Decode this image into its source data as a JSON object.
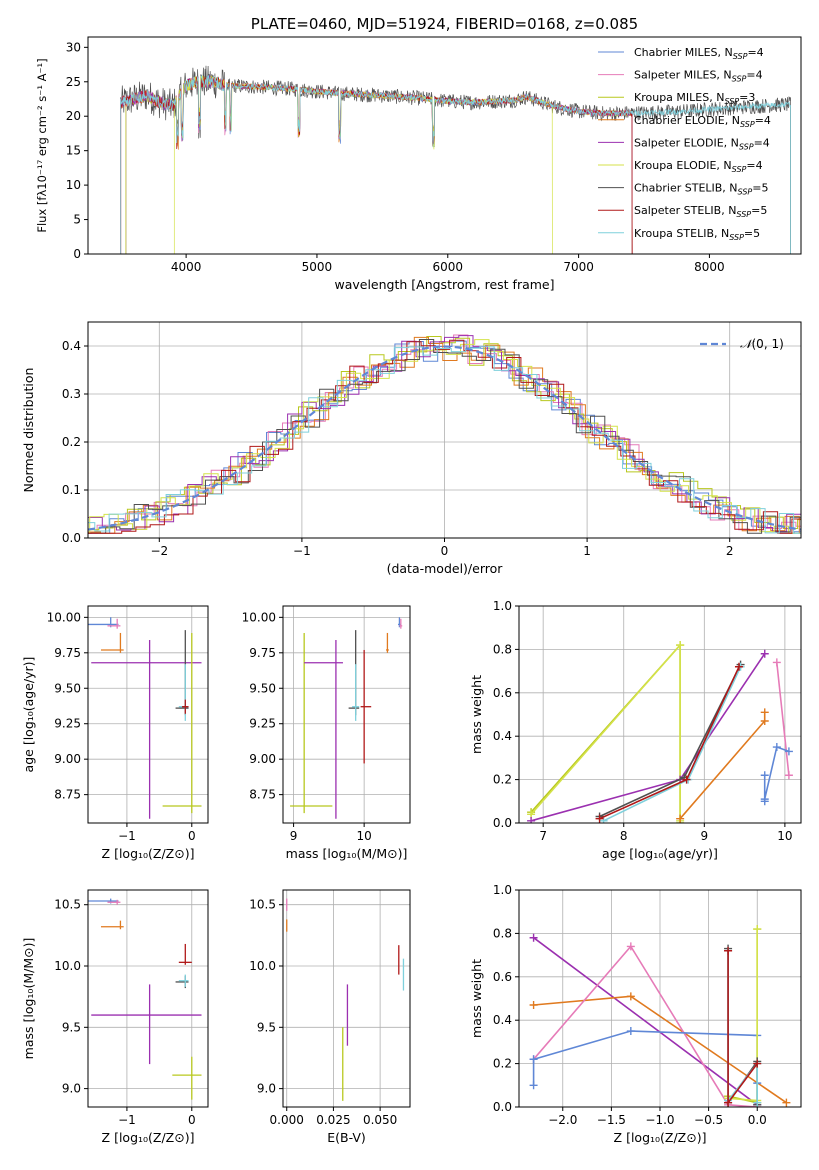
{
  "colors": {
    "Chabrier MILES": "#5f87d6",
    "Salpeter MILES": "#e67bb8",
    "Kroupa MILES": "#b8c81e",
    "Chabrier ELODIE": "#e07a1f",
    "Salpeter ELODIE": "#9b30b0",
    "Kroupa ELODIE": "#d4e24a",
    "Chabrier STELIB": "#505050",
    "Salpeter STELIB": "#b01818",
    "Kroupa STELIB": "#7fd0dc",
    "normal_fit": "#5f87d6"
  },
  "chart_data": [
    {
      "id": "spectrum",
      "type": "line",
      "title": "PLATE=0460, MJD=51924, FIBERID=0168, z=0.085",
      "xlabel": "wavelength [Angstrom, rest frame]",
      "ylabel": "Flux [fλ10⁻¹⁷ erg cm⁻² s⁻¹ A⁻¹]",
      "xlim": [
        3250,
        8700
      ],
      "ylim": [
        0,
        31.5
      ],
      "xticks": [
        "4000",
        "5000",
        "6000",
        "7000",
        "8000"
      ],
      "yticks": [
        "0",
        "5",
        "10",
        "15",
        "20",
        "25",
        "30"
      ],
      "grid": false,
      "legend_position": "top-right",
      "series": [
        {
          "name": "Chabrier MILES",
          "nssp_label": "Chabrier MILES, N",
          "nssp": "=4",
          "range": [
            3540,
            7410
          ]
        },
        {
          "name": "Salpeter MILES",
          "nssp_label": "Salpeter MILES, N",
          "nssp": "=4",
          "range": [
            3540,
            7410
          ]
        },
        {
          "name": "Kroupa MILES",
          "nssp_label": "Kroupa MILES, N",
          "nssp": "=3",
          "range": [
            3540,
            7410
          ]
        },
        {
          "name": "Chabrier ELODIE",
          "nssp_label": "Chabrier ELODIE, N",
          "nssp": "=4",
          "range": [
            3500,
            7410
          ]
        },
        {
          "name": "Salpeter ELODIE",
          "nssp_label": "Salpeter ELODIE, N",
          "nssp": "=4",
          "range": [
            3500,
            7410
          ]
        },
        {
          "name": "Kroupa ELODIE",
          "nssp_label": "Kroupa ELODIE, N",
          "nssp": "=4",
          "range": [
            3910,
            6800
          ]
        },
        {
          "name": "Chabrier STELIB",
          "nssp_label": "Chabrier STELIB, N",
          "nssp": "=5",
          "range": [
            3500,
            8620
          ]
        },
        {
          "name": "Salpeter STELIB",
          "nssp_label": "Salpeter STELIB, N",
          "nssp": "=5",
          "range": [
            3500,
            7410
          ]
        },
        {
          "name": "Kroupa STELIB",
          "nssp_label": "Kroupa STELIB, N",
          "nssp": "=5",
          "range": [
            3500,
            8620
          ]
        }
      ],
      "continuum": {
        "x": [
          3500,
          3600,
          3700,
          3800,
          3900,
          3950,
          4000,
          4100,
          4200,
          4300,
          4500,
          4800,
          5000,
          5200,
          5500,
          5800,
          6000,
          6200,
          6500,
          6600,
          6800,
          7000,
          7200,
          7500,
          7800,
          8000,
          8300,
          8600
        ],
        "y": [
          22,
          22.5,
          23,
          22,
          21.5,
          23,
          24.5,
          25,
          25,
          24.5,
          24.3,
          24,
          23.6,
          23.3,
          23,
          22.6,
          22.2,
          22,
          22.3,
          22.8,
          21.5,
          20.7,
          20.4,
          20.5,
          20.7,
          21,
          21.4,
          21.7
        ]
      }
    },
    {
      "id": "residuals",
      "type": "line",
      "xlabel": "(data-model)/error",
      "ylabel": "Normed distribution",
      "xlim": [
        -2.5,
        2.5
      ],
      "ylim": [
        0,
        0.45
      ],
      "xticks": [
        "−2",
        "−1",
        "0",
        "1",
        "2"
      ],
      "yticks": [
        "0.0",
        "0.1",
        "0.2",
        "0.3",
        "0.4"
      ],
      "grid": true,
      "legend_position": "top-right",
      "legend_label": "(0, 1)",
      "legend_glyph": "𝒩",
      "fit": {
        "name": "N(0,1)",
        "mean": 0,
        "sigma": 1
      }
    },
    {
      "id": "age-vs-Z",
      "type": "scatter",
      "xlabel": "Z [log₁₀(Z/Z⊙)]",
      "ylabel": "age  [log₁₀(age/yr)]",
      "xlim": [
        -1.6,
        0.25
      ],
      "ylim": [
        8.55,
        10.08
      ],
      "xticks": [
        "−1",
        "0"
      ],
      "yticks": [
        "8.75",
        "9.00",
        "9.25",
        "9.50",
        "9.75",
        "10.00"
      ],
      "grid": true,
      "points": [
        {
          "series": "Chabrier MILES",
          "x": -1.25,
          "y": 9.95,
          "xerr": [
            0.35,
            0.12
          ],
          "yerr": [
            0.02,
            0.05
          ]
        },
        {
          "series": "Salpeter MILES",
          "x": -1.15,
          "y": 9.94,
          "xerr": [
            0.15,
            0.05
          ],
          "yerr": [
            0.02,
            0.05
          ]
        },
        {
          "series": "Chabrier ELODIE",
          "x": -1.1,
          "y": 9.77,
          "xerr": [
            0.3,
            0.05
          ],
          "yerr": [
            0.02,
            0.12
          ]
        },
        {
          "series": "Salpeter ELODIE",
          "x": -0.65,
          "y": 9.68,
          "xerr": [
            0.9,
            0.8
          ],
          "yerr": [
            1.1,
            0.16
          ]
        },
        {
          "series": "Chabrier STELIB",
          "x": -0.1,
          "y": 9.36,
          "xerr": [
            0.15,
            0.05
          ],
          "yerr": [
            0.05,
            0.55
          ]
        },
        {
          "series": "Kroupa STELIB",
          "x": -0.1,
          "y": 9.37,
          "xerr": [
            0.1,
            0.05
          ],
          "yerr": [
            0.1,
            0.3
          ]
        },
        {
          "series": "Kroupa MILES",
          "x": 0.0,
          "y": 8.67,
          "xerr": [
            0.45,
            0.15
          ],
          "yerr": [
            0.05,
            1.22
          ]
        },
        {
          "series": "Salpeter STELIB",
          "x": -0.1,
          "y": 9.37,
          "xerr": [
            0.05,
            0.05
          ],
          "yerr": [
            0.05,
            0.05
          ]
        }
      ]
    },
    {
      "id": "age-vs-mass",
      "type": "scatter",
      "xlabel": "mass [log₁₀(M/M⊙)]",
      "ylabel": "",
      "xlim": [
        8.85,
        10.65
      ],
      "ylim": [
        8.55,
        10.08
      ],
      "xticks": [
        "9",
        "10"
      ],
      "yticks": [
        "8.75",
        "9.00",
        "9.25",
        "9.50",
        "9.75",
        "10.00"
      ],
      "grid": true,
      "points": [
        {
          "series": "Kroupa MILES",
          "x": 9.15,
          "y": 8.67,
          "xerr": [
            0.2,
            0.4
          ],
          "yerr": [
            0.05,
            1.22
          ]
        },
        {
          "series": "Salpeter ELODIE",
          "x": 9.6,
          "y": 9.68,
          "xerr": [
            0.45,
            0.1
          ],
          "yerr": [
            1.1,
            0.16
          ]
        },
        {
          "series": "Chabrier STELIB",
          "x": 9.88,
          "y": 9.36,
          "xerr": [
            0.1,
            0.05
          ],
          "yerr": [
            0.05,
            0.55
          ]
        },
        {
          "series": "Kroupa STELIB",
          "x": 9.88,
          "y": 9.37,
          "xerr": [
            0.05,
            0.05
          ],
          "yerr": [
            0.1,
            0.3
          ]
        },
        {
          "series": "Salpeter STELIB",
          "x": 10.0,
          "y": 9.37,
          "xerr": [
            0.05,
            0.1
          ],
          "yerr": [
            0.4,
            0.4
          ]
        },
        {
          "series": "Chabrier ELODIE",
          "x": 10.33,
          "y": 9.77,
          "xerr": [
            0.02,
            0.02
          ],
          "yerr": [
            0.02,
            0.12
          ]
        },
        {
          "series": "Chabrier MILES",
          "x": 10.5,
          "y": 9.95,
          "xerr": [
            0.02,
            0.02
          ],
          "yerr": [
            0.02,
            0.05
          ]
        },
        {
          "series": "Salpeter MILES",
          "x": 10.52,
          "y": 9.94,
          "xerr": [
            0.02,
            0.02
          ],
          "yerr": [
            0.02,
            0.05
          ]
        }
      ]
    },
    {
      "id": "weight-vs-age",
      "type": "line",
      "xlabel": "age  [log₁₀(age/yr)]",
      "ylabel": "mass weight",
      "xlim": [
        6.7,
        10.2
      ],
      "ylim": [
        0,
        1.0
      ],
      "xticks": [
        "7",
        "8",
        "9",
        "10"
      ],
      "yticks": [
        "0.0",
        "0.2",
        "0.4",
        "0.6",
        "0.8",
        "1.0"
      ],
      "grid": true,
      "series": [
        {
          "name": "Kroupa MILES",
          "x": [
            6.85,
            8.7,
            8.7
          ],
          "y": [
            0.05,
            0.82,
            0.0
          ]
        },
        {
          "name": "Kroupa ELODIE",
          "x": [
            6.85,
            8.7,
            8.7
          ],
          "y": [
            0.04,
            0.82,
            0.01
          ]
        },
        {
          "name": "Salpeter ELODIE",
          "x": [
            6.85,
            8.7,
            9.75
          ],
          "y": [
            0.01,
            0.2,
            0.78
          ]
        },
        {
          "name": "Chabrier ELODIE",
          "x": [
            8.7,
            9.75,
            9.75
          ],
          "y": [
            0.02,
            0.47,
            0.51
          ]
        },
        {
          "name": "Chabrier STELIB",
          "x": [
            7.7,
            8.75,
            9.45
          ],
          "y": [
            0.03,
            0.21,
            0.73
          ]
        },
        {
          "name": "Kroupa STELIB",
          "x": [
            7.75,
            8.8,
            9.45
          ],
          "y": [
            0.01,
            0.2,
            0.72
          ]
        },
        {
          "name": "Salpeter STELIB",
          "x": [
            7.7,
            8.78,
            9.43
          ],
          "y": [
            0.02,
            0.2,
            0.72
          ]
        },
        {
          "name": "Salpeter MILES",
          "x": [
            9.9,
            10.05
          ],
          "y": [
            0.74,
            0.22
          ]
        },
        {
          "name": "Chabrier MILES",
          "x": [
            9.75,
            9.9,
            10.05
          ],
          "y": [
            0.11,
            0.35,
            0.33
          ]
        },
        {
          "name": "Chabrier MILES",
          "x": [
            9.75,
            9.75
          ],
          "y": [
            0.1,
            0.22
          ]
        }
      ]
    },
    {
      "id": "mass-vs-Z",
      "type": "scatter",
      "xlabel": "Z [log₁₀(Z/Z⊙)]",
      "ylabel": "mass [log₁₀(M/M⊙)]",
      "xlim": [
        -1.6,
        0.25
      ],
      "ylim": [
        8.85,
        10.62
      ],
      "xticks": [
        "−1",
        "0"
      ],
      "yticks": [
        "9.0",
        "9.5",
        "10.0",
        "10.5"
      ],
      "grid": true,
      "points": [
        {
          "series": "Chabrier MILES",
          "x": -1.25,
          "y": 10.53,
          "xerr": [
            0.35,
            0.12
          ],
          "yerr": [
            0.02,
            0.02
          ]
        },
        {
          "series": "Salpeter MILES",
          "x": -1.15,
          "y": 10.52,
          "xerr": [
            0.15,
            0.05
          ],
          "yerr": [
            0.02,
            0.02
          ]
        },
        {
          "series": "Chabrier ELODIE",
          "x": -1.1,
          "y": 10.32,
          "xerr": [
            0.3,
            0.05
          ],
          "yerr": [
            0.02,
            0.05
          ]
        },
        {
          "series": "Salpeter STELIB",
          "x": -0.1,
          "y": 10.03,
          "xerr": [
            0.1,
            0.1
          ],
          "yerr": [
            0.02,
            0.15
          ]
        },
        {
          "series": "Chabrier STELIB",
          "x": -0.1,
          "y": 9.87,
          "xerr": [
            0.15,
            0.05
          ],
          "yerr": [
            0.05,
            0.05
          ]
        },
        {
          "series": "Kroupa STELIB",
          "x": -0.1,
          "y": 9.88,
          "xerr": [
            0.1,
            0.05
          ],
          "yerr": [
            0.05,
            0.05
          ]
        },
        {
          "series": "Salpeter ELODIE",
          "x": -0.65,
          "y": 9.6,
          "xerr": [
            0.9,
            0.8
          ],
          "yerr": [
            0.4,
            0.25
          ]
        },
        {
          "series": "Kroupa MILES",
          "x": 0.0,
          "y": 9.11,
          "xerr": [
            0.3,
            0.15
          ],
          "yerr": [
            0.2,
            0.15
          ]
        }
      ]
    },
    {
      "id": "mass-vs-EBV",
      "type": "scatter",
      "xlabel": "E(B-V)",
      "ylabel": "",
      "xlim": [
        -0.002,
        0.066
      ],
      "ylim": [
        8.85,
        10.62
      ],
      "xticks": [
        "0.000",
        "0.025",
        "0.050"
      ],
      "yticks": [
        "9.0",
        "9.5",
        "10.0",
        "10.5"
      ],
      "grid": true,
      "points": [
        {
          "series": "Salpeter MILES",
          "x": 0.0,
          "y": 10.5,
          "xerr": [
            0,
            0
          ],
          "yerr": [
            0.05,
            0.05
          ]
        },
        {
          "series": "Chabrier ELODIE",
          "x": 0.0,
          "y": 10.33,
          "xerr": [
            0,
            0
          ],
          "yerr": [
            0.05,
            0.05
          ]
        },
        {
          "series": "Kroupa MILES",
          "x": 0.03,
          "y": 9.2,
          "xerr": [
            0,
            0
          ],
          "yerr": [
            0.3,
            0.3
          ]
        },
        {
          "series": "Salpeter ELODIE",
          "x": 0.0325,
          "y": 9.6,
          "xerr": [
            0,
            0
          ],
          "yerr": [
            0.25,
            0.25
          ]
        },
        {
          "series": "Salpeter STELIB",
          "x": 0.06,
          "y": 10.05,
          "xerr": [
            0,
            0
          ],
          "yerr": [
            0.12,
            0.12
          ]
        },
        {
          "series": "Kroupa STELIB",
          "x": 0.0625,
          "y": 9.93,
          "xerr": [
            0,
            0
          ],
          "yerr": [
            0.13,
            0.13
          ]
        }
      ]
    },
    {
      "id": "weight-vs-Z",
      "type": "line",
      "xlabel": "Z [log₁₀(Z/Z⊙)]",
      "ylabel": "mass weight",
      "xlim": [
        -2.45,
        0.45
      ],
      "ylim": [
        0,
        1.0
      ],
      "xticks": [
        "−2.0",
        "−1.5",
        "−1.0",
        "−0.5",
        "0.0"
      ],
      "yticks": [
        "0.0",
        "0.2",
        "0.4",
        "0.6",
        "0.8",
        "1.0"
      ],
      "grid": true,
      "series": [
        {
          "name": "Salpeter ELODIE",
          "x": [
            -2.3,
            0.0
          ],
          "y": [
            0.78,
            0.01
          ]
        },
        {
          "name": "Chabrier ELODIE",
          "x": [
            -2.3,
            -1.3,
            0.3
          ],
          "y": [
            0.47,
            0.51,
            0.02
          ]
        },
        {
          "name": "Salpeter MILES",
          "x": [
            -2.3,
            -1.3,
            -0.3,
            0.0
          ],
          "y": [
            0.22,
            0.74,
            0.01,
            0.0
          ]
        },
        {
          "name": "Chabrier MILES",
          "x": [
            -2.3,
            -2.3,
            -1.3,
            -0.0,
            0.0
          ],
          "y": [
            0.1,
            0.22,
            0.35,
            0.33,
            0.11
          ]
        },
        {
          "name": "Kroupa MILES",
          "x": [
            0.0,
            0.0,
            -0.3
          ],
          "y": [
            0.82,
            0.02,
            0.05
          ]
        },
        {
          "name": "Kroupa ELODIE",
          "x": [
            0.0,
            0.0,
            -0.3
          ],
          "y": [
            0.82,
            0.03,
            0.04
          ]
        },
        {
          "name": "Chabrier STELIB",
          "x": [
            -0.3,
            -0.3,
            0.0,
            0.0
          ],
          "y": [
            0.73,
            0.02,
            0.21,
            0.01
          ]
        },
        {
          "name": "Kroupa STELIB",
          "x": [
            -0.3,
            -0.3,
            0.0,
            0.0
          ],
          "y": [
            0.72,
            0.03,
            0.2,
            0.02
          ]
        },
        {
          "name": "Salpeter STELIB",
          "x": [
            -0.3,
            -0.3,
            0.0
          ],
          "y": [
            0.72,
            0.02,
            0.2
          ]
        }
      ]
    }
  ]
}
